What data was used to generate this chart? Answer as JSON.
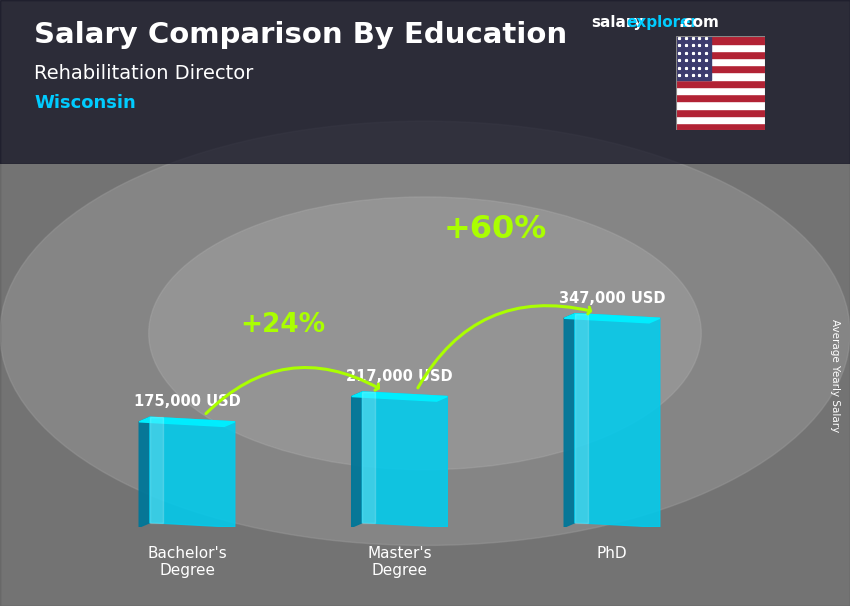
{
  "title": "Salary Comparison By Education",
  "subtitle": "Rehabilitation Director",
  "location": "Wisconsin",
  "categories": [
    "Bachelor's\nDegree",
    "Master's\nDegree",
    "PhD"
  ],
  "values": [
    175000,
    217000,
    347000
  ],
  "value_labels": [
    "175,000 USD",
    "217,000 USD",
    "347,000 USD"
  ],
  "pct_labels": [
    "+24%",
    "+60%"
  ],
  "bar_face_color": "#00ccee",
  "bar_left_color": "#007799",
  "bar_top_color": "#00eeff",
  "bar_highlight_color": "#ffffff",
  "background_dark": "#404040",
  "title_color": "#ffffff",
  "subtitle_color": "#ffffff",
  "location_color": "#00ccff",
  "value_label_color": "#ffffff",
  "pct_color": "#aaff00",
  "arrow_color": "#aaff00",
  "ylabel_text": "Average Yearly Salary",
  "figsize": [
    8.5,
    6.06
  ],
  "dpi": 100
}
